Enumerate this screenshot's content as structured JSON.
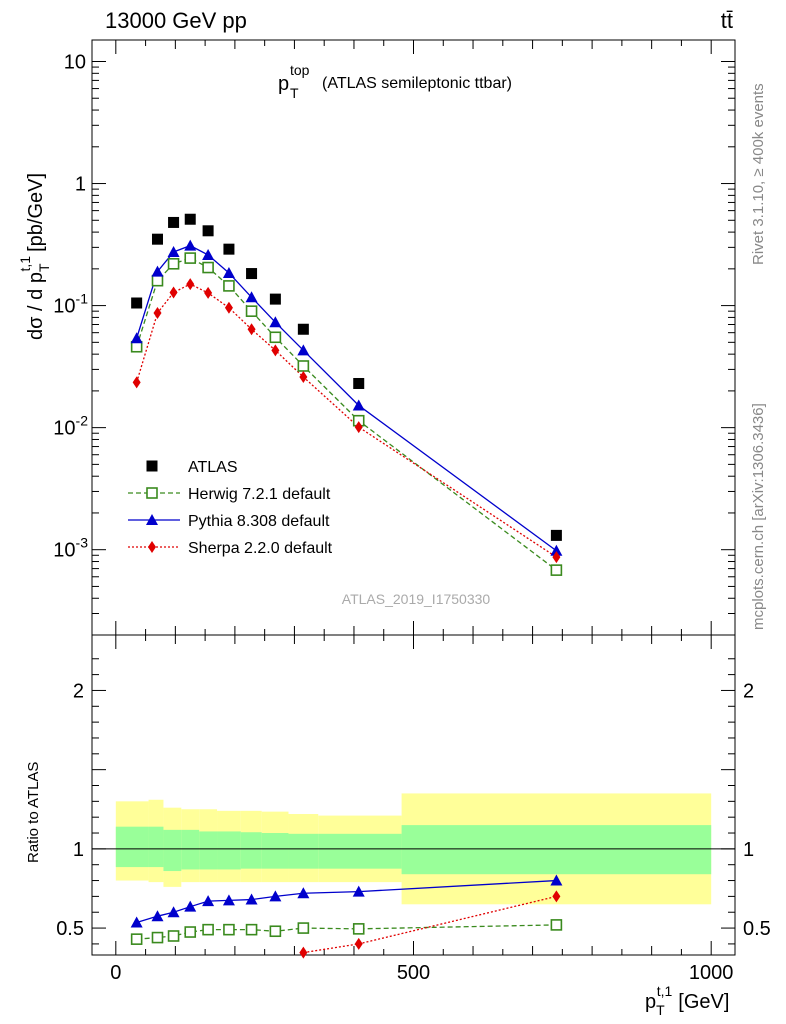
{
  "header": {
    "energy_label": "13000 GeV pp",
    "process_label": "tt̄"
  },
  "side_labels": {
    "rivet": "Rivet 3.1.10, ≥ 400k events",
    "mcplots": "mcplots.cern.ch [arXiv:1306.3436]"
  },
  "chart_data": [
    {
      "type": "scatter",
      "panel": "main",
      "title_main": "p",
      "title_sup": "top",
      "title_sub": "T",
      "title_rest": "(ATLAS semileptonic ttbar)",
      "ylabel": "dσ / d p_T^{t,1} [pb/GeV]",
      "yscale": "log",
      "ylim": [
        0.0002,
        15
      ],
      "xlim": [
        -40,
        1040
      ],
      "y_tick_labels": [
        "10",
        "1",
        "10^{-1}",
        "10^{-2}",
        "10^{-3}"
      ],
      "analysis_label": "ATLAS_2019_I1750330",
      "legend_position": "bottom-left",
      "x": [
        35,
        70,
        97,
        125,
        155,
        190,
        228,
        268,
        315,
        408,
        740
      ],
      "series": [
        {
          "name": "ATLAS",
          "style": "data",
          "color": "#000000",
          "values": [
            0.105,
            0.35,
            0.48,
            0.51,
            0.41,
            0.29,
            0.183,
            0.113,
            0.064,
            0.023,
            0.00131
          ]
        },
        {
          "name": "Herwig 7.2.1 default",
          "style": "open-square-dashed",
          "color": "#3a8a1e",
          "values": [
            0.046,
            0.16,
            0.22,
            0.245,
            0.205,
            0.145,
            0.09,
            0.055,
            0.032,
            0.0114,
            0.00068
          ]
        },
        {
          "name": "Pythia 8.308 default",
          "style": "triangle-solid",
          "color": "#0000cc",
          "values": [
            0.054,
            0.19,
            0.275,
            0.31,
            0.26,
            0.185,
            0.117,
            0.073,
            0.043,
            0.0152,
            0.00098
          ]
        },
        {
          "name": "Sherpa 2.2.0 default",
          "style": "diamond-dotted",
          "color": "#e00000",
          "values": [
            0.0235,
            0.087,
            0.128,
            0.15,
            0.127,
            0.096,
            0.064,
            0.043,
            0.026,
            0.0101,
            0.00087
          ]
        }
      ]
    },
    {
      "type": "scatter",
      "panel": "ratio",
      "ylabel": "Ratio to ATLAS",
      "xlabel": "p_T^{t,1} [GeV]",
      "ylim": [
        0.33,
        2.35
      ],
      "xlim": [
        -40,
        1040
      ],
      "y_ticks": [
        0.5,
        1,
        2
      ],
      "y_tick_labels": [
        "0.5",
        "1",
        "2"
      ],
      "x_ticks": [
        0,
        500,
        1000
      ],
      "x_tick_labels": [
        "0",
        "500",
        "1000"
      ],
      "x": [
        35,
        70,
        97,
        125,
        155,
        190,
        228,
        268,
        315,
        408,
        740
      ],
      "bins": [
        [
          0,
          55
        ],
        [
          55,
          80
        ],
        [
          80,
          110
        ],
        [
          110,
          140
        ],
        [
          140,
          170
        ],
        [
          170,
          210
        ],
        [
          210,
          245
        ],
        [
          245,
          290
        ],
        [
          290,
          340
        ],
        [
          340,
          480
        ],
        [
          480,
          1000
        ]
      ],
      "band_green": [
        [
          0.885,
          1.14
        ],
        [
          0.885,
          1.14
        ],
        [
          0.86,
          1.12
        ],
        [
          0.87,
          1.12
        ],
        [
          0.87,
          1.11
        ],
        [
          0.87,
          1.11
        ],
        [
          0.875,
          1.105
        ],
        [
          0.875,
          1.1
        ],
        [
          0.875,
          1.095
        ],
        [
          0.875,
          1.095
        ],
        [
          0.84,
          1.15
        ]
      ],
      "band_yellow": [
        [
          0.8,
          1.3
        ],
        [
          0.79,
          1.31
        ],
        [
          0.76,
          1.26
        ],
        [
          0.79,
          1.25
        ],
        [
          0.79,
          1.25
        ],
        [
          0.79,
          1.24
        ],
        [
          0.79,
          1.24
        ],
        [
          0.79,
          1.235
        ],
        [
          0.79,
          1.22
        ],
        [
          0.79,
          1.21
        ],
        [
          0.65,
          1.35
        ]
      ],
      "series": [
        {
          "name": "Herwig 7.2.1 default",
          "style": "open-square-dashed",
          "color": "#3a8a1e",
          "values": [
            0.43,
            0.44,
            0.45,
            0.475,
            0.49,
            0.49,
            0.49,
            0.48,
            0.5,
            0.495,
            0.52
          ]
        },
        {
          "name": "Pythia 8.308 default",
          "style": "triangle-solid",
          "color": "#0000cc",
          "values": [
            0.535,
            0.575,
            0.6,
            0.635,
            0.67,
            0.675,
            0.68,
            0.7,
            0.72,
            0.73,
            0.8
          ]
        },
        {
          "name": "Sherpa 2.2.0 default",
          "style": "diamond-dotted",
          "color": "#e00000",
          "values": [
            null,
            null,
            null,
            null,
            null,
            null,
            null,
            null,
            0.345,
            0.4,
            0.7
          ]
        }
      ]
    }
  ]
}
